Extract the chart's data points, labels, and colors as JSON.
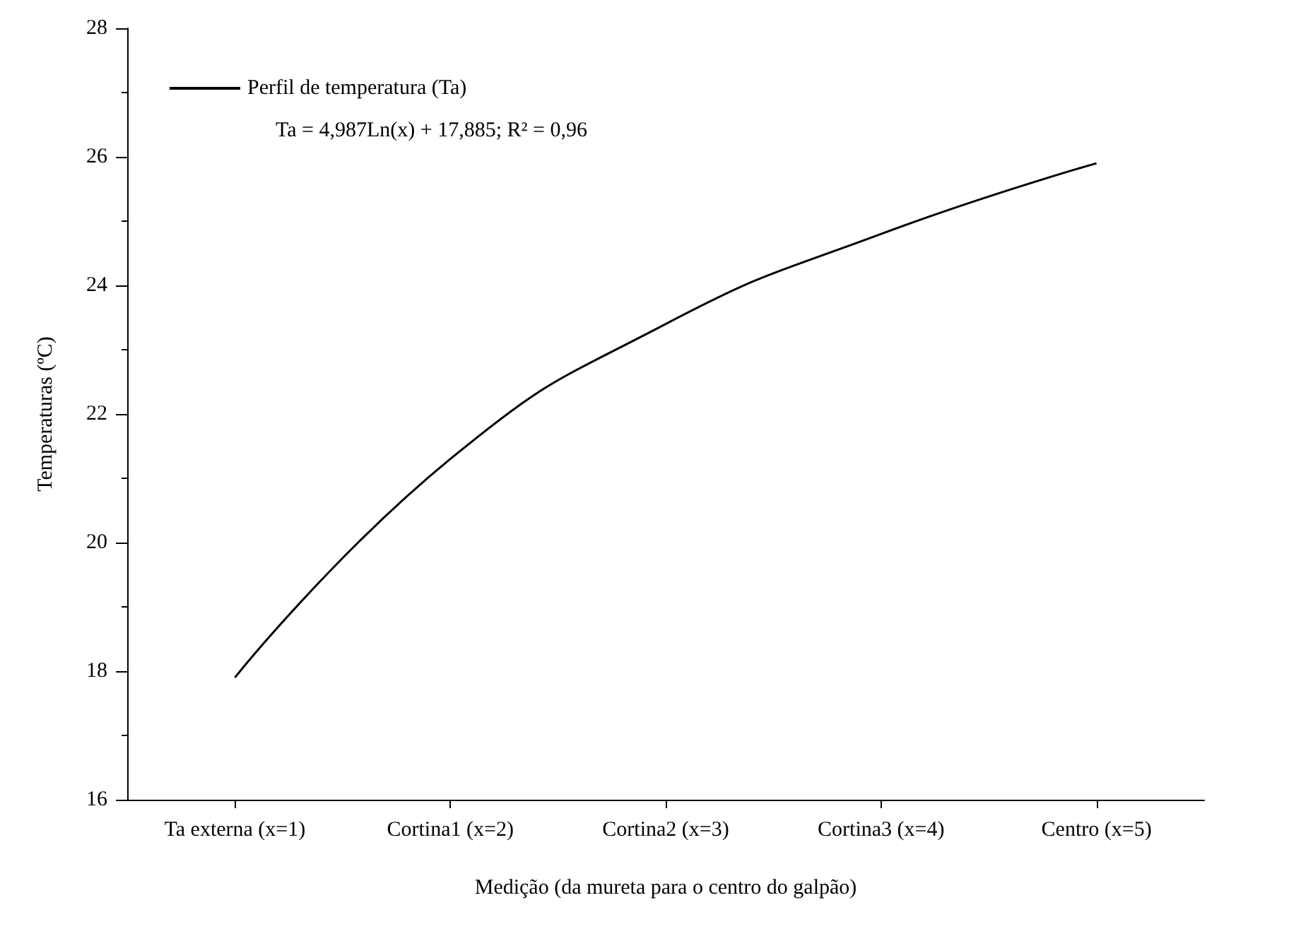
{
  "chart_data": {
    "type": "line",
    "xlabel": "Medição (da mureta para o centro do galpão)",
    "ylabel": "Temperaturas (ºC)",
    "categories": [
      "Ta externa (x=1)",
      "Cortina1 (x=2)",
      "Cortina2 (x=3)",
      "Cortina3 (x=4)",
      "Centro (x=5)"
    ],
    "series": [
      {
        "name": "Perfil de temperatura (Ta)",
        "color": "#000000",
        "values": [
          17.9,
          21.3,
          23.4,
          24.8,
          25.9
        ]
      }
    ],
    "ylim": [
      16,
      28
    ],
    "yticks": [
      16,
      18,
      20,
      22,
      24,
      26,
      28
    ],
    "grid": false,
    "legend": "top left",
    "annotations": [
      "Ta = 4,987Ln(x) + 17,885; R² = 0,96"
    ]
  }
}
